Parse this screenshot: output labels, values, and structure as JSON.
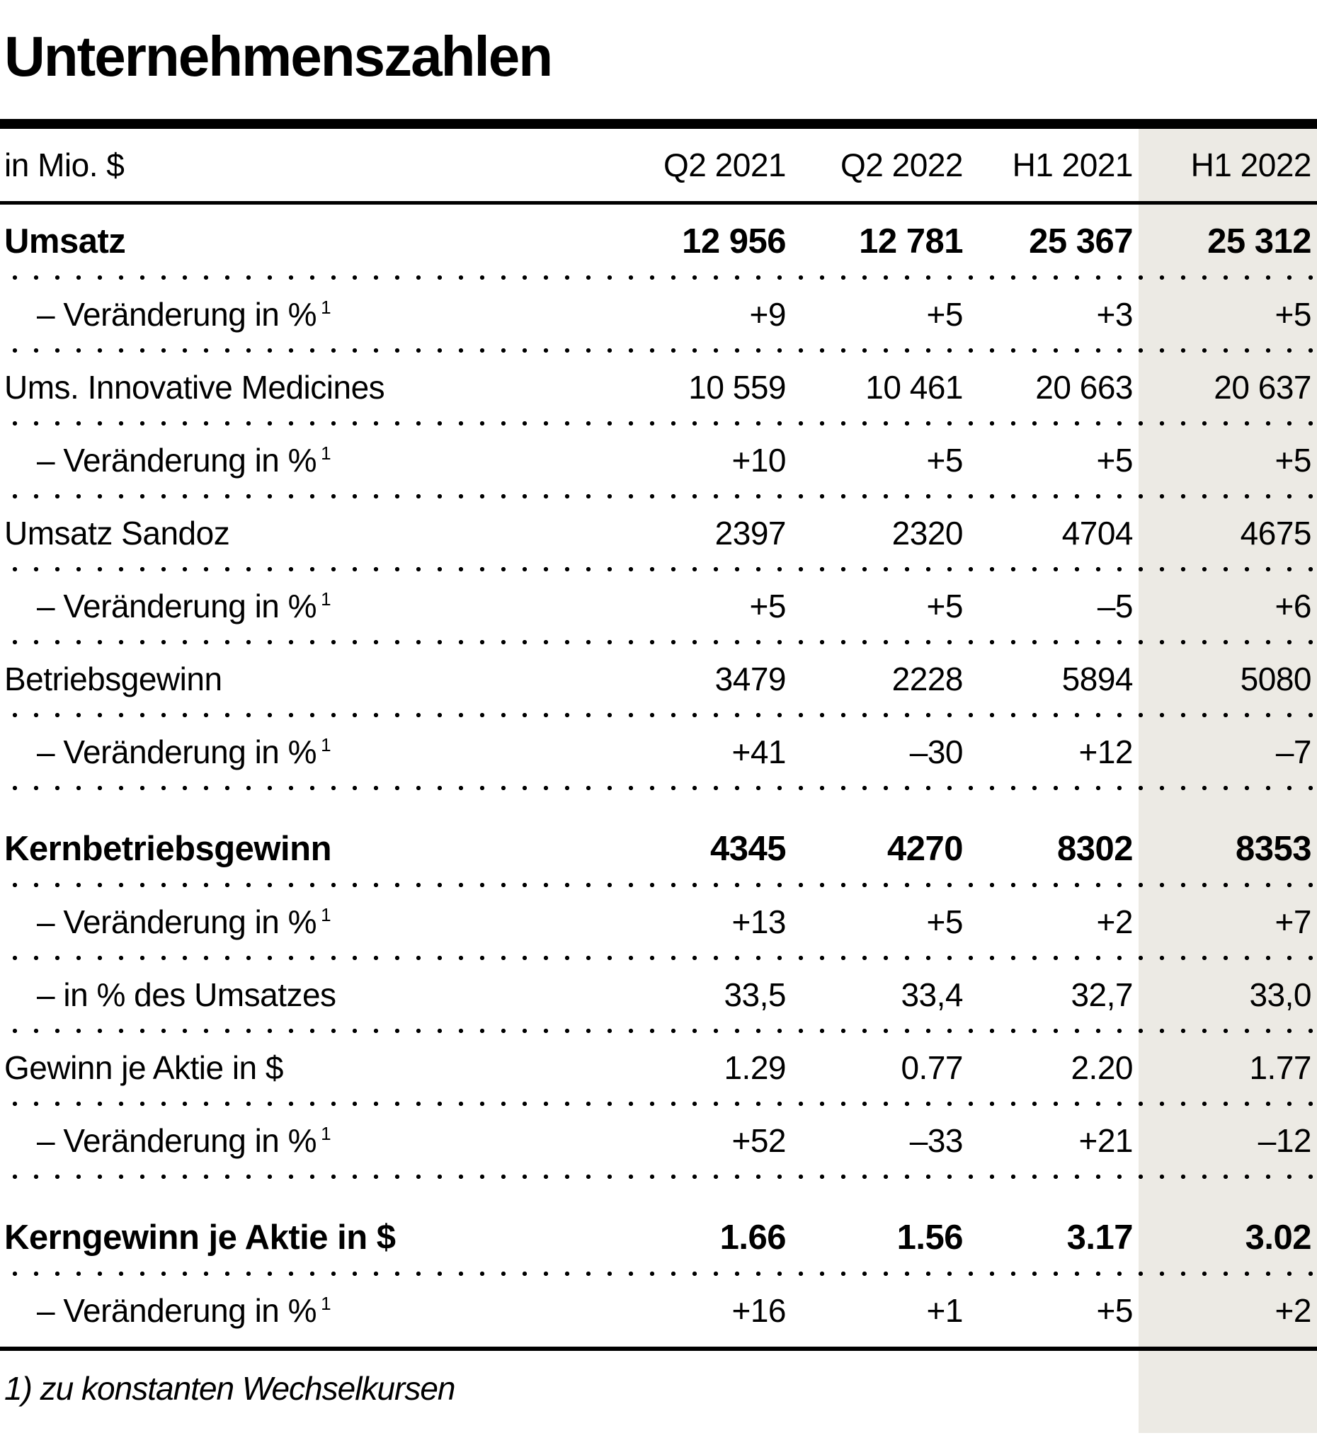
{
  "title": "Unternehmenszahlen",
  "footnote": "1) zu konstanten Wechselkursen",
  "colors": {
    "background": "#FFFFFF",
    "text": "#000000",
    "highlight_band": "#ECEAE4",
    "rules": "#000000"
  },
  "chart_data": {
    "type": "table",
    "title": "Unternehmenszahlen",
    "unit_label": "in Mio. $",
    "columns": [
      "Q2 2021",
      "Q2 2022",
      "H1 2021",
      "H1 2022"
    ],
    "highlighted_column": "H1 2022",
    "footnote": "1) zu konstanten Wechselkursen",
    "rows": [
      {
        "label": "Umsatz",
        "sup": "",
        "bold": true,
        "indent": false,
        "group_start": false,
        "values": [
          "12 956",
          "12 781",
          "25 367",
          "25 312"
        ]
      },
      {
        "label": "– Veränderung in %",
        "sup": "1",
        "bold": false,
        "indent": true,
        "group_start": false,
        "values": [
          "+9",
          "+5",
          "+3",
          "+5"
        ]
      },
      {
        "label": "Ums. Innovative Medicines",
        "sup": "",
        "bold": false,
        "indent": false,
        "group_start": false,
        "values": [
          "10 559",
          "10 461",
          "20 663",
          "20 637"
        ]
      },
      {
        "label": "– Veränderung in %",
        "sup": "1",
        "bold": false,
        "indent": true,
        "group_start": false,
        "values": [
          "+10",
          "+5",
          "+5",
          "+5"
        ]
      },
      {
        "label": "Umsatz Sandoz",
        "sup": "",
        "bold": false,
        "indent": false,
        "group_start": false,
        "values": [
          "2397",
          "2320",
          "4704",
          "4675"
        ]
      },
      {
        "label": "– Veränderung in %",
        "sup": "1",
        "bold": false,
        "indent": true,
        "group_start": false,
        "values": [
          "+5",
          "+5",
          "–5",
          "+6"
        ]
      },
      {
        "label": "Betriebsgewinn",
        "sup": "",
        "bold": false,
        "indent": false,
        "group_start": false,
        "values": [
          "3479",
          "2228",
          "5894",
          "5080"
        ]
      },
      {
        "label": "– Veränderung in %",
        "sup": "1",
        "bold": false,
        "indent": true,
        "group_start": false,
        "values": [
          "+41",
          "–30",
          "+12",
          "–7"
        ]
      },
      {
        "label": "Kernbetriebsgewinn",
        "sup": "",
        "bold": true,
        "indent": false,
        "group_start": true,
        "values": [
          "4345",
          "4270",
          "8302",
          "8353"
        ]
      },
      {
        "label": "– Veränderung in %",
        "sup": "1",
        "bold": false,
        "indent": true,
        "group_start": false,
        "values": [
          "+13",
          "+5",
          "+2",
          "+7"
        ]
      },
      {
        "label": "– in % des Umsatzes",
        "sup": "",
        "bold": false,
        "indent": true,
        "group_start": false,
        "values": [
          "33,5",
          "33,4",
          "32,7",
          "33,0"
        ]
      },
      {
        "label": "Gewinn je Aktie in $",
        "sup": "",
        "bold": false,
        "indent": false,
        "group_start": false,
        "values": [
          "1.29",
          "0.77",
          "2.20",
          "1.77"
        ]
      },
      {
        "label": "– Veränderung in %",
        "sup": "1",
        "bold": false,
        "indent": true,
        "group_start": false,
        "values": [
          "+52",
          "–33",
          "+21",
          "–12"
        ]
      },
      {
        "label": "Kerngewinn je Aktie in $",
        "sup": "",
        "bold": true,
        "indent": false,
        "group_start": true,
        "values": [
          "1.66",
          "1.56",
          "3.17",
          "3.02"
        ]
      },
      {
        "label": "– Veränderung in %",
        "sup": "1",
        "bold": false,
        "indent": true,
        "group_start": false,
        "values": [
          "+16",
          "+1",
          "+5",
          "+2"
        ]
      }
    ]
  }
}
